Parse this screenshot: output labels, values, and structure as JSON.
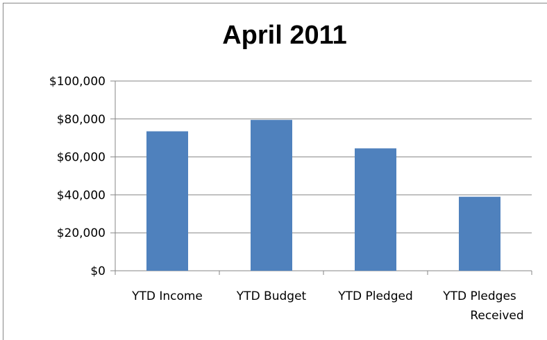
{
  "chart_data": {
    "type": "bar",
    "title": "April 2011",
    "categories": [
      "YTD Income",
      "YTD Budget",
      "YTD Pledged",
      [
        "YTD Pledges",
        "Received"
      ]
    ],
    "category_labels": [
      "YTD Income",
      "YTD Budget",
      "YTD Pledged",
      "YTD Pledges Received"
    ],
    "values": [
      73500,
      79500,
      64500,
      39000
    ],
    "ylim": [
      0,
      100000
    ],
    "yticks": [
      0,
      20000,
      40000,
      60000,
      80000,
      100000
    ],
    "ytick_labels": [
      "$0",
      "$20,000",
      "$40,000",
      "$60,000",
      "$80,000",
      "$100,000"
    ],
    "grid": true,
    "legend": "none",
    "colors": {
      "bar": "#4F81BD",
      "grid": "#868686",
      "axis": "#868686"
    }
  }
}
